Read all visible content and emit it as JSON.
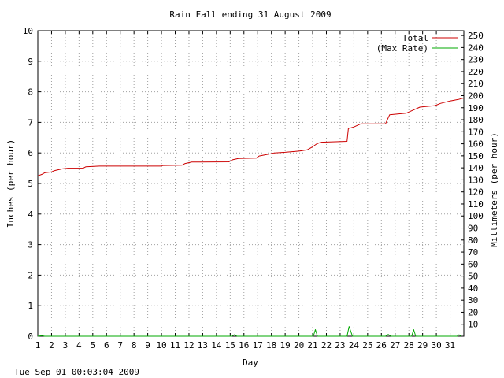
{
  "chart_data": {
    "type": "line",
    "title": "Rain Fall ending 31 August 2009",
    "xlabel": "Day",
    "ylabel_left": "Inches (per hour)",
    "ylabel_right": "Millimeters (per hour)",
    "timestamp": "Tue Sep 01 00:03:04 2009",
    "xlim": [
      1,
      32
    ],
    "ylim": [
      0,
      10
    ],
    "ylim_right": [
      0,
      254
    ],
    "x_ticks": [
      1,
      2,
      3,
      4,
      5,
      6,
      7,
      8,
      9,
      10,
      11,
      12,
      13,
      14,
      15,
      16,
      17,
      18,
      19,
      20,
      21,
      22,
      23,
      24,
      25,
      26,
      27,
      28,
      29,
      30,
      31
    ],
    "y_ticks": [
      0,
      1,
      2,
      3,
      4,
      5,
      6,
      7,
      8,
      9,
      10
    ],
    "y_ticks_right": [
      10,
      20,
      30,
      40,
      50,
      60,
      70,
      80,
      90,
      100,
      110,
      120,
      130,
      140,
      150,
      160,
      170,
      180,
      190,
      200,
      210,
      220,
      230,
      240,
      250
    ],
    "grid": true,
    "legend_position": "top-right",
    "series": [
      {
        "name": "Total",
        "color": "#cc0000",
        "points": [
          [
            1.0,
            5.25
          ],
          [
            1.3,
            5.3
          ],
          [
            1.5,
            5.35
          ],
          [
            2.0,
            5.38
          ],
          [
            2.2,
            5.42
          ],
          [
            2.5,
            5.45
          ],
          [
            2.8,
            5.48
          ],
          [
            3.2,
            5.5
          ],
          [
            4.3,
            5.5
          ],
          [
            4.5,
            5.55
          ],
          [
            5.5,
            5.57
          ],
          [
            10.0,
            5.57
          ],
          [
            10.1,
            5.59
          ],
          [
            11.5,
            5.6
          ],
          [
            11.7,
            5.65
          ],
          [
            12.2,
            5.7
          ],
          [
            14.9,
            5.71
          ],
          [
            15.2,
            5.78
          ],
          [
            15.6,
            5.82
          ],
          [
            16.9,
            5.83
          ],
          [
            17.1,
            5.9
          ],
          [
            17.8,
            5.96
          ],
          [
            18.2,
            6.0
          ],
          [
            19.0,
            6.02
          ],
          [
            20.0,
            6.06
          ],
          [
            20.6,
            6.1
          ],
          [
            21.0,
            6.2
          ],
          [
            21.3,
            6.3
          ],
          [
            21.6,
            6.35
          ],
          [
            23.5,
            6.38
          ],
          [
            23.6,
            6.8
          ],
          [
            24.0,
            6.85
          ],
          [
            24.5,
            6.95
          ],
          [
            26.3,
            6.95
          ],
          [
            26.6,
            7.25
          ],
          [
            27.8,
            7.3
          ],
          [
            28.3,
            7.4
          ],
          [
            28.8,
            7.5
          ],
          [
            29.9,
            7.55
          ],
          [
            30.3,
            7.62
          ],
          [
            31.0,
            7.7
          ],
          [
            31.6,
            7.75
          ],
          [
            32.0,
            7.8
          ]
        ]
      },
      {
        "name": "(Max Rate)",
        "color": "#00aa00",
        "points": [
          [
            1.0,
            0.0
          ],
          [
            1.3,
            0.02
          ],
          [
            1.5,
            0.0
          ],
          [
            15.1,
            0.0
          ],
          [
            15.3,
            0.05
          ],
          [
            15.5,
            0.0
          ],
          [
            21.05,
            0.0
          ],
          [
            21.2,
            0.22
          ],
          [
            21.35,
            0.0
          ],
          [
            23.5,
            0.0
          ],
          [
            23.65,
            0.32
          ],
          [
            23.9,
            0.0
          ],
          [
            26.3,
            0.0
          ],
          [
            26.5,
            0.06
          ],
          [
            26.7,
            0.0
          ],
          [
            28.2,
            0.0
          ],
          [
            28.35,
            0.22
          ],
          [
            28.5,
            0.0
          ],
          [
            31.5,
            0.0
          ],
          [
            31.65,
            0.05
          ],
          [
            31.8,
            0.0
          ]
        ]
      }
    ]
  }
}
